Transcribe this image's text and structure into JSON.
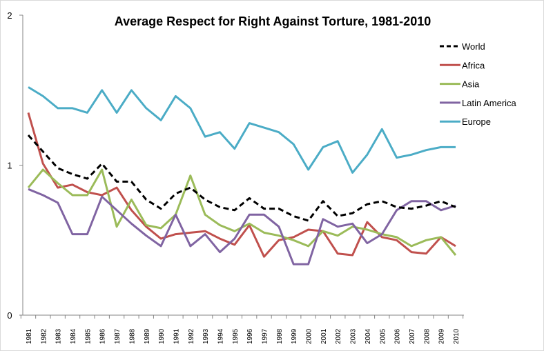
{
  "chart_data": {
    "type": "line",
    "title": "Average Respect for Right Against Torture, 1981-2010",
    "xlabel": "",
    "ylabel": "",
    "ylim": [
      0,
      2
    ],
    "yticks": [
      "0",
      "1",
      "2"
    ],
    "grid": false,
    "legend": "top-right",
    "x": [
      1981,
      1982,
      1983,
      1984,
      1985,
      1986,
      1987,
      1988,
      1989,
      1990,
      1991,
      1992,
      1993,
      1994,
      1995,
      1996,
      1997,
      1998,
      1999,
      2000,
      2001,
      2002,
      2003,
      2004,
      2005,
      2006,
      2007,
      2008,
      2009,
      2010
    ],
    "series": [
      {
        "name": "World",
        "color": "#000000",
        "dashed": true,
        "values": [
          1.2,
          1.09,
          0.98,
          0.94,
          0.91,
          1.01,
          0.89,
          0.89,
          0.77,
          0.71,
          0.81,
          0.85,
          0.77,
          0.72,
          0.7,
          0.78,
          0.71,
          0.71,
          0.66,
          0.63,
          0.76,
          0.66,
          0.68,
          0.74,
          0.76,
          0.72,
          0.71,
          0.73,
          0.76,
          0.72
        ]
      },
      {
        "name": "Africa",
        "color": "#c0504d",
        "dashed": false,
        "values": [
          1.35,
          1.01,
          0.85,
          0.87,
          0.82,
          0.8,
          0.85,
          0.7,
          0.59,
          0.51,
          0.54,
          0.55,
          0.56,
          0.51,
          0.47,
          0.6,
          0.39,
          0.5,
          0.52,
          0.57,
          0.56,
          0.41,
          0.4,
          0.62,
          0.52,
          0.5,
          0.42,
          0.41,
          0.52,
          0.46
        ]
      },
      {
        "name": "Asia",
        "color": "#9bbb59",
        "dashed": false,
        "values": [
          0.85,
          0.97,
          0.88,
          0.8,
          0.8,
          0.97,
          0.59,
          0.77,
          0.6,
          0.58,
          0.67,
          0.93,
          0.67,
          0.6,
          0.56,
          0.61,
          0.55,
          0.53,
          0.5,
          0.46,
          0.56,
          0.53,
          0.59,
          0.57,
          0.54,
          0.52,
          0.46,
          0.5,
          0.52,
          0.4
        ]
      },
      {
        "name": "Latin America",
        "color": "#8064a2",
        "dashed": false,
        "values": [
          0.84,
          0.8,
          0.75,
          0.54,
          0.54,
          0.79,
          0.7,
          0.61,
          0.53,
          0.46,
          0.67,
          0.46,
          0.54,
          0.42,
          0.51,
          0.67,
          0.67,
          0.59,
          0.34,
          0.34,
          0.64,
          0.59,
          0.61,
          0.48,
          0.54,
          0.7,
          0.76,
          0.76,
          0.7,
          0.73
        ]
      },
      {
        "name": "Europe",
        "color": "#4bacc6",
        "dashed": false,
        "values": [
          1.52,
          1.46,
          1.38,
          1.38,
          1.35,
          1.5,
          1.35,
          1.5,
          1.38,
          1.3,
          1.46,
          1.38,
          1.19,
          1.22,
          1.11,
          1.28,
          1.25,
          1.22,
          1.14,
          0.97,
          1.12,
          1.16,
          0.95,
          1.07,
          1.24,
          1.05,
          1.07,
          1.1,
          1.12,
          1.12
        ]
      }
    ]
  }
}
